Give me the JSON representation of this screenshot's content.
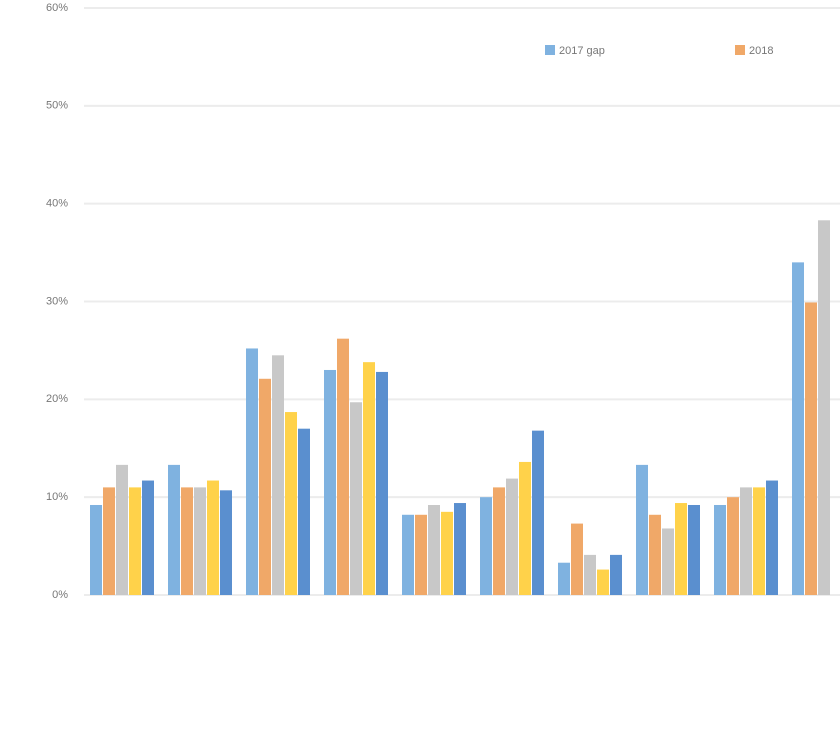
{
  "chart_data": {
    "type": "bar",
    "categories": [
      null,
      null,
      null,
      null,
      null,
      null,
      null,
      null,
      null,
      null
    ],
    "series": [
      {
        "name": "2017 gap",
        "color": "#7fb2e0",
        "values": [
          9.2,
          13.3,
          25.2,
          23,
          8.2,
          10,
          3.3,
          13.3,
          9.2,
          34
        ]
      },
      {
        "name": "2018",
        "color": "#f0a868",
        "values": [
          11,
          11,
          22.1,
          26.2,
          8.2,
          11,
          7.3,
          8.2,
          10,
          29.9
        ]
      },
      {
        "color": "#c8c8c8",
        "values": [
          13.3,
          11,
          24.5,
          19.7,
          9.2,
          11.9,
          4.1,
          6.8,
          11,
          38.3
        ]
      },
      {
        "color": "#ffd24a",
        "values": [
          11,
          11.7,
          18.7,
          23.8,
          8.5,
          13.6,
          2.6,
          9.4,
          11,
          null
        ]
      },
      {
        "color": "#5a8fcf",
        "values": [
          11.7,
          10.7,
          17,
          22.8,
          9.4,
          16.8,
          4.1,
          9.2,
          11.7,
          null
        ]
      }
    ],
    "ylim": [
      0,
      60
    ],
    "yticks": [
      {
        "value": 0,
        "label": "0%"
      },
      {
        "value": 10,
        "label": "10%"
      },
      {
        "value": 20,
        "label": "20%"
      },
      {
        "value": 30,
        "label": "30%"
      },
      {
        "value": 40,
        "label": "40%"
      },
      {
        "value": 50,
        "label": "50%"
      },
      {
        "value": 60,
        "label": "60%"
      }
    ],
    "grid": true
  }
}
